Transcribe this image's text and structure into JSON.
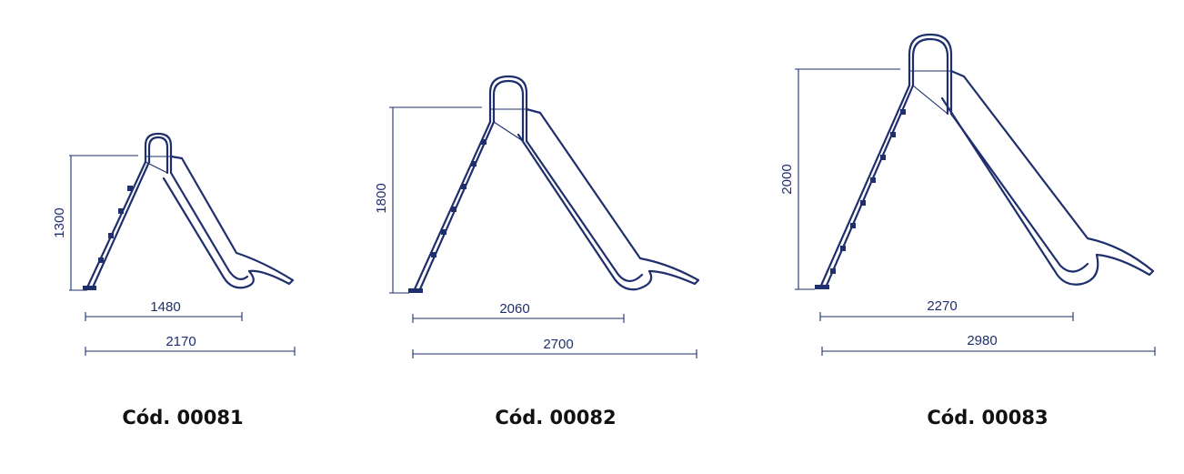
{
  "colors": {
    "line": "#1f2f6e",
    "caption": "#111111",
    "background": "#ffffff"
  },
  "slides": [
    {
      "code": "Cód. 00081",
      "height": "1300",
      "ladder_width": "1480",
      "total_length": "2170"
    },
    {
      "code": "Cód. 00082",
      "height": "1800",
      "ladder_width": "2060",
      "total_length": "2700"
    },
    {
      "code": "Cód. 00083",
      "height": "2000",
      "ladder_width": "2270",
      "total_length": "2980"
    }
  ]
}
